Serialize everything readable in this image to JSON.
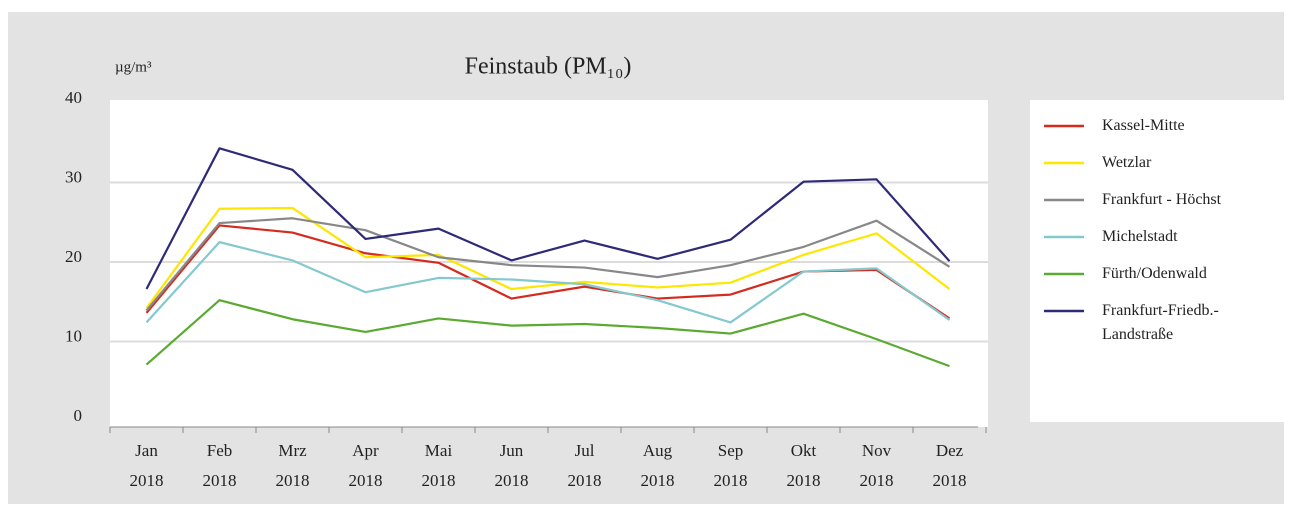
{
  "chart_data": {
    "type": "line",
    "title": "Feinstaub (PM₁₀)",
    "y_label": "µg/m³",
    "categories": [
      "Jan 2018",
      "Feb 2018",
      "Mrz 2018",
      "Apr 2018",
      "Mai 2018",
      "Jun 2018",
      "Jul 2018",
      "Aug 2018",
      "Sep 2018",
      "Okt 2018",
      "Nov 2018",
      "Dez 2018"
    ],
    "ylim": [
      0,
      40
    ],
    "yticks": [
      0,
      10,
      20,
      30,
      40
    ],
    "grid": true,
    "legend": "right",
    "series": [
      {
        "name": "Kassel-Mitte",
        "color": "#d52b1e",
        "values": [
          13.6,
          24.6,
          23.7,
          21.1,
          19.9,
          15.4,
          16.9,
          15.4,
          15.9,
          18.8,
          19.0,
          12.9
        ]
      },
      {
        "name": "Wetzlar",
        "color": "#ffe600",
        "values": [
          14.2,
          26.7,
          26.8,
          20.6,
          20.9,
          16.6,
          17.5,
          16.8,
          17.4,
          20.9,
          23.6,
          16.6
        ]
      },
      {
        "name": "Frankfurt - Höchst",
        "color": "#888888",
        "values": [
          13.9,
          24.9,
          25.5,
          24.0,
          20.6,
          19.6,
          19.3,
          18.1,
          19.6,
          21.9,
          25.2,
          19.4
        ]
      },
      {
        "name": "Michelstadt",
        "color": "#84c9cd",
        "values": [
          12.4,
          22.5,
          20.2,
          16.2,
          18.0,
          17.8,
          17.2,
          15.2,
          12.4,
          18.8,
          19.2,
          12.7
        ]
      },
      {
        "name": "Fürth/Odenwald",
        "color": "#5aaa32",
        "values": [
          7.1,
          15.2,
          12.8,
          11.2,
          12.9,
          12.0,
          12.2,
          11.7,
          11.0,
          13.5,
          10.3,
          6.9
        ]
      },
      {
        "name": "Frankfurt-Friedb.-Landstraße",
        "color": "#2e2a78",
        "values": [
          16.6,
          34.3,
          31.6,
          22.9,
          24.2,
          20.2,
          22.7,
          20.4,
          22.8,
          30.1,
          30.4,
          20.1
        ]
      }
    ]
  }
}
